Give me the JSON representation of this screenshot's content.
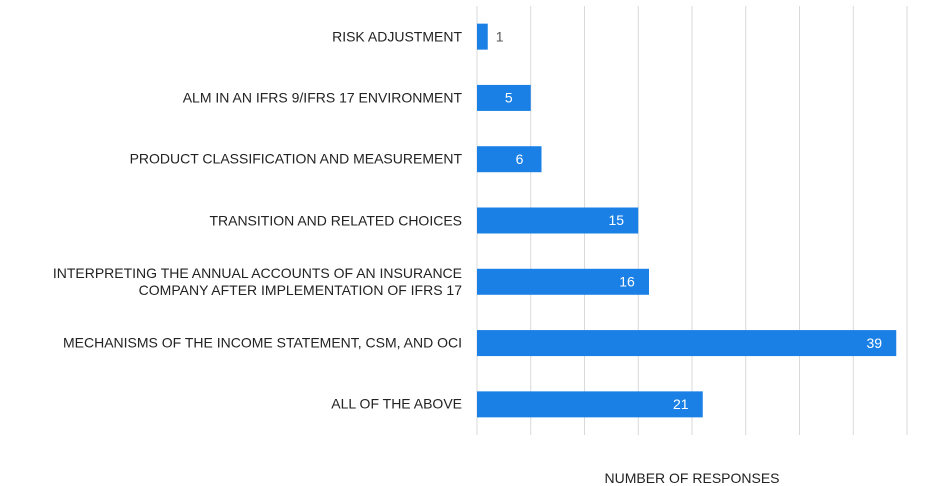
{
  "chart_data": {
    "type": "barh",
    "categories": [
      "RISK ADJUSTMENT",
      "ALM IN AN IFRS 9/IFRS 17 ENVIRONMENT",
      "PRODUCT CLASSIFICATION AND MEASUREMENT",
      "TRANSITION AND RELATED CHOICES",
      "INTERPRETING THE ANNUAL ACCOUNTS OF AN INSURANCE COMPANY AFTER IMPLEMENTATION OF IFRS 17",
      "MECHANISMS OF THE INCOME STATEMENT, CSM, AND OCI",
      "ALL OF THE ABOVE"
    ],
    "values": [
      1,
      5,
      6,
      15,
      16,
      39,
      21
    ],
    "color": "#1a80e5",
    "xlabel": "NUMBER OF RESPONSES",
    "xlim": [
      0,
      40
    ],
    "xticks": [
      0,
      5,
      10,
      15,
      20,
      25,
      30,
      35,
      40
    ],
    "grid": true
  }
}
